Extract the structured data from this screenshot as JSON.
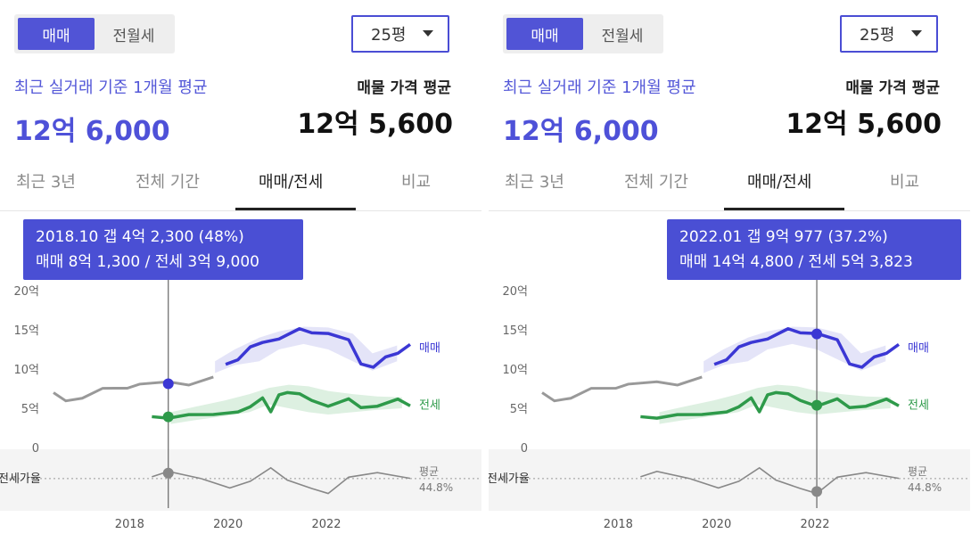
{
  "panels": [
    {
      "seg_options": [
        "매매",
        "전월세"
      ],
      "pyeong": "25평",
      "sub_label": "최근 실거래 기준 1개월 평균",
      "main_price": "12억 6,000",
      "ask_label": "매물 가격 평균",
      "ask_price": "12억 5,600",
      "tabs": [
        "최근 3년",
        "전체 기간",
        "매매/전세",
        "비교"
      ],
      "active_tab": "매매/전세",
      "tooltip_line1": "2018.10  갭 4억 2,300 (48%)",
      "tooltip_line2": "매매 8억 1,300 / 전세 3억 9,000",
      "y_ticks": [
        "20억",
        "15억",
        "10억",
        "5억",
        "0"
      ],
      "x_ticks": [
        "2018",
        "2020",
        "2022"
      ],
      "series_labels": {
        "sale": "매매",
        "jeonse": "전세"
      },
      "ratio_label": "전세가율",
      "avg_label": "평균",
      "avg_value": "44.8%",
      "colors": {
        "sale": "#3b37d4",
        "jeonse": "#2e9a4a",
        "past": "#999999",
        "accent": "#5154d6"
      }
    },
    {
      "seg_options": [
        "매매",
        "전월세"
      ],
      "pyeong": "25평",
      "sub_label": "최근 실거래 기준 1개월 평균",
      "main_price": "12억 6,000",
      "ask_label": "매물 가격 평균",
      "ask_price": "12억 5,600",
      "tabs": [
        "최근 3년",
        "전체 기간",
        "매매/전세",
        "비교"
      ],
      "active_tab": "매매/전세",
      "tooltip_line1": "2022.01  갭 9억 977 (37.2%)",
      "tooltip_line2": "매매 14억 4,800 / 전세 5억 3,823",
      "y_ticks": [
        "20억",
        "15억",
        "10억",
        "5억",
        "0"
      ],
      "x_ticks": [
        "2018",
        "2020",
        "2022"
      ],
      "series_labels": {
        "sale": "매매",
        "jeonse": "전세"
      },
      "ratio_label": "전세가율",
      "avg_label": "평균",
      "avg_value": "44.8%",
      "colors": {
        "sale": "#3b37d4",
        "jeonse": "#2e9a4a",
        "past": "#999999",
        "accent": "#5154d6"
      }
    }
  ],
  "chart_data": {
    "type": "line",
    "x_range": [
      "2016.06",
      "2023.09"
    ],
    "ylim": [
      0,
      20
    ],
    "y_unit": "억",
    "series": [
      {
        "name": "매매",
        "points": [
          [
            "2016.06",
            6.7
          ],
          [
            "2016.09",
            6.0
          ],
          [
            "2017.01",
            6.5
          ],
          [
            "2017.06",
            7.2
          ],
          [
            "2017.12",
            7.8
          ],
          [
            "2018.03",
            8.1
          ],
          [
            "2018.10",
            8.1
          ],
          [
            "2019.03",
            8.3
          ],
          [
            "2019.09",
            8.8
          ],
          [
            "2019.12",
            10.5
          ],
          [
            "2020.03",
            11.5
          ],
          [
            "2020.06",
            12.5
          ],
          [
            "2020.09",
            13.5
          ],
          [
            "2021.01",
            14.0
          ],
          [
            "2021.06",
            14.8
          ],
          [
            "2021.09",
            14.9
          ],
          [
            "2022.01",
            14.5
          ],
          [
            "2022.06",
            13.5
          ],
          [
            "2022.09",
            11.0
          ],
          [
            "2022.12",
            10.0
          ],
          [
            "2023.03",
            11.5
          ],
          [
            "2023.06",
            12.3
          ],
          [
            "2023.09",
            12.8
          ]
        ]
      },
      {
        "name": "전세",
        "points": [
          [
            "2018.06",
            3.9
          ],
          [
            "2018.10",
            3.9
          ],
          [
            "2019.03",
            4.0
          ],
          [
            "2019.09",
            4.3
          ],
          [
            "2020.03",
            4.6
          ],
          [
            "2020.06",
            5.0
          ],
          [
            "2020.09",
            6.5
          ],
          [
            "2020.11",
            4.5
          ],
          [
            "2021.01",
            6.6
          ],
          [
            "2021.03",
            7.2
          ],
          [
            "2021.06",
            6.7
          ],
          [
            "2021.09",
            6.0
          ],
          [
            "2022.01",
            5.4
          ],
          [
            "2022.06",
            6.0
          ],
          [
            "2022.09",
            5.2
          ],
          [
            "2023.01",
            5.3
          ],
          [
            "2023.06",
            6.0
          ],
          [
            "2023.09",
            5.5
          ]
        ]
      },
      {
        "name": "전세가율",
        "points": [
          [
            "2018.06",
            47
          ],
          [
            "2018.10",
            48
          ],
          [
            "2019.06",
            45
          ],
          [
            "2020.01",
            40
          ],
          [
            "2020.06",
            42
          ],
          [
            "2020.11",
            52
          ],
          [
            "2021.03",
            44
          ],
          [
            "2021.09",
            38
          ],
          [
            "2022.01",
            37.2
          ],
          [
            "2022.06",
            45
          ],
          [
            "2023.01",
            48
          ],
          [
            "2023.09",
            46
          ]
        ]
      }
    ],
    "ratio_average": 44.8
  }
}
